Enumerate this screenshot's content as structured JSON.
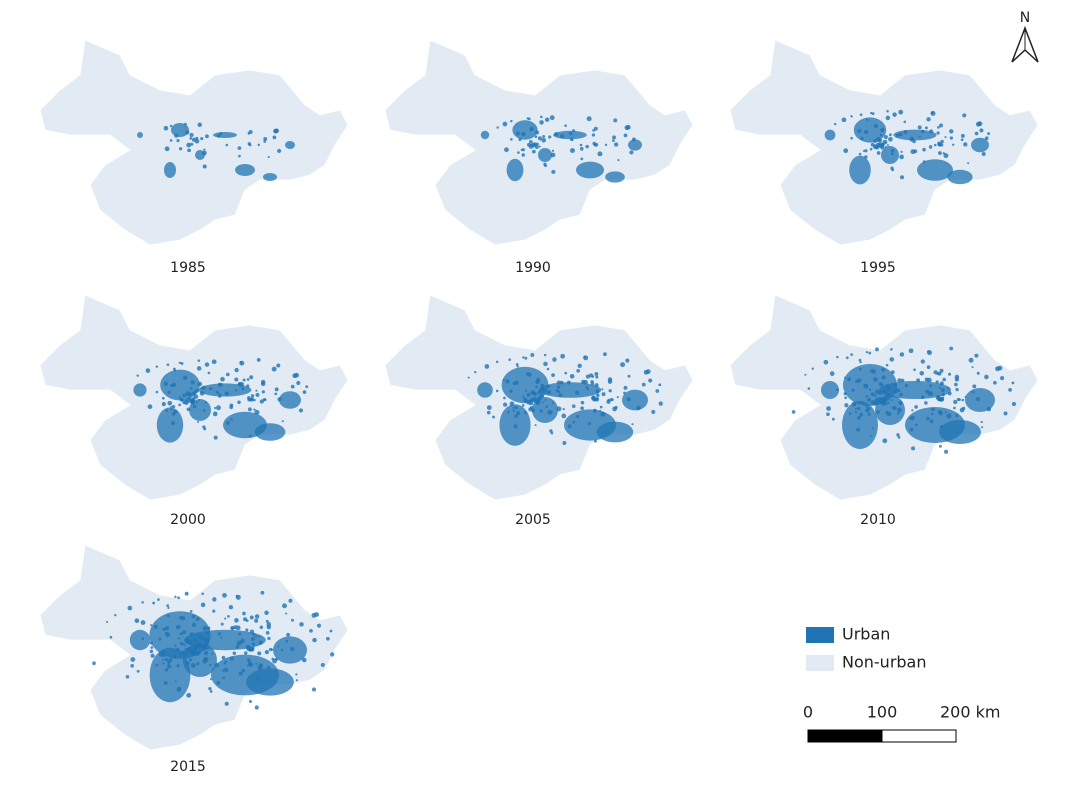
{
  "panels": [
    {
      "year": "1985"
    },
    {
      "year": "1990"
    },
    {
      "year": "1995"
    },
    {
      "year": "2000"
    },
    {
      "year": "2005"
    },
    {
      "year": "2010"
    },
    {
      "year": "2015"
    }
  ],
  "north_arrow": {
    "label": "N"
  },
  "legend": {
    "items": [
      {
        "label": "Urban",
        "color": "#2074b4"
      },
      {
        "label": "Non-urban",
        "color": "#e2ebf4"
      }
    ]
  },
  "scale_bar": {
    "labels": [
      "0",
      "100",
      "200 km"
    ]
  }
}
